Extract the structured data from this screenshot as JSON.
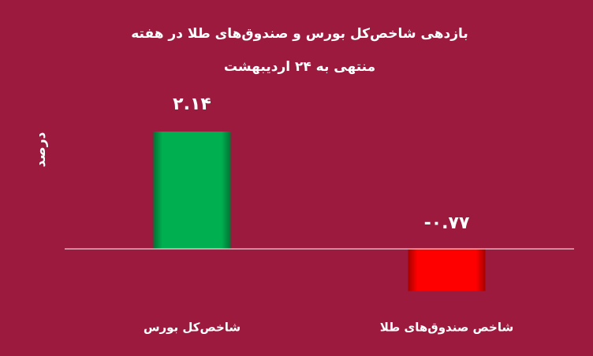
{
  "chart_data": {
    "type": "bar",
    "title": "بازدهی شاخص‌کل بورس و صندوق‌های طلا در هفته منتهی به ۲۴ اردیبهشت",
    "y_label": "درصد",
    "categories": [
      "شاخص‌کل بورس",
      "شاخص صندوق‌های طلا"
    ],
    "values": [
      2.14,
      -0.77
    ],
    "value_labels": [
      "۲.۱۴",
      "-۰.۷۷"
    ],
    "colors": [
      "#00b050",
      "#ff0000"
    ],
    "ylim": [
      -1,
      2.5
    ]
  }
}
